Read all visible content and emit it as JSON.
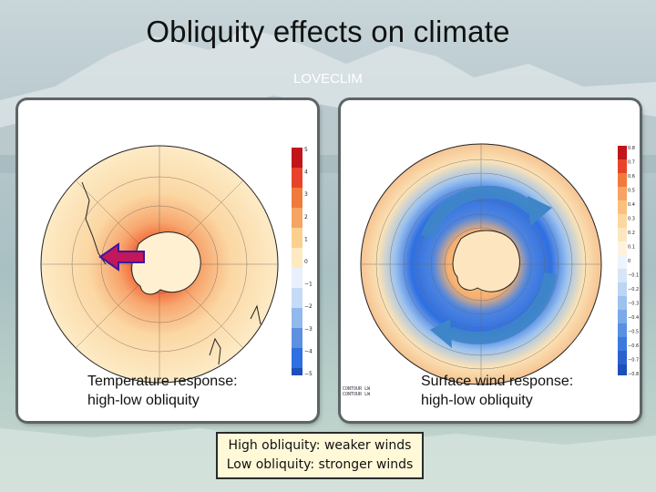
{
  "title": "Obliquity effects on climate",
  "subtitle": "LOVECLIM",
  "left_panel": {
    "caption_line1": "Temperature response:",
    "caption_line2": "high-low obliquity",
    "colorbar_ticks": [
      "5",
      "4",
      "3",
      "2",
      "1",
      "0",
      "−1",
      "−2",
      "−3",
      "−4",
      "−5"
    ]
  },
  "right_panel": {
    "caption_line1": "Surface wind response:",
    "caption_line2": "high-low obliquity",
    "colorbar_ticks": [
      "0.8",
      "0.7",
      "0.6",
      "0.5",
      "0.4",
      "0.3",
      "0.2",
      "0.1",
      "0",
      "−0.1",
      "−0.2",
      "−0.3",
      "−0.4",
      "−0.5",
      "−0.6",
      "−0.7",
      "−0.8"
    ],
    "contour_label1": "CONTOUR LW",
    "contour_label2": "CONTOUR LW"
  },
  "note": {
    "line1": "High obliquity: weaker winds",
    "line2": "Low obliquity: stronger winds"
  },
  "colors": {
    "warm": "#e8432a",
    "cool": "#2f6fe0",
    "arrow": "#5a9fd4",
    "note_bg": "#fff9d8"
  }
}
